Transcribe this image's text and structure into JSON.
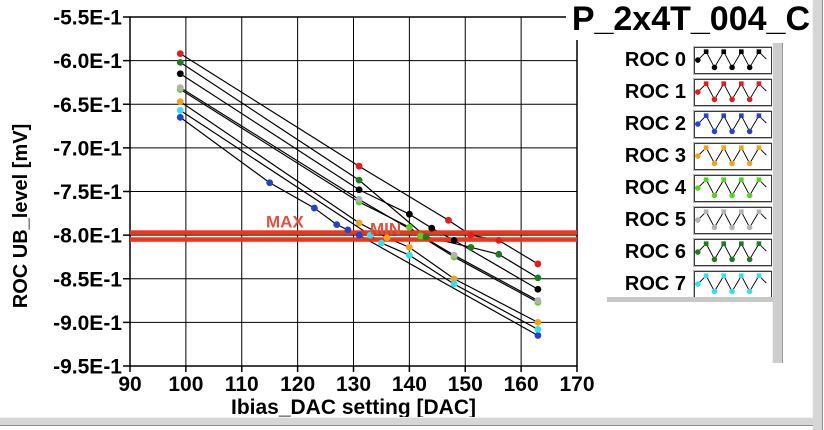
{
  "graph_title": "P_2x4T_004_C",
  "colors": {
    "plot_background": "#ffffff",
    "grid": "#000000",
    "data_line": "#000000",
    "reference_line": "#ee3519",
    "reference_label": "#e0523e",
    "window_chrome": "#d6d6d6"
  },
  "chart_data": {
    "type": "line",
    "title": "P_2x4T_004_C",
    "xlabel": "Ibias_DAC setting [DAC]",
    "ylabel": "ROC UB_level [mV]",
    "xlim": [
      90,
      170
    ],
    "ylim": [
      -0.95,
      -0.55
    ],
    "xticks": [
      90,
      100,
      110,
      120,
      130,
      140,
      150,
      160,
      170
    ],
    "yticks": [
      {
        "label": "-5.5E-1",
        "value": -0.55
      },
      {
        "label": "-6.0E-1",
        "value": -0.6
      },
      {
        "label": "-6.5E-1",
        "value": -0.65
      },
      {
        "label": "-7.0E-1",
        "value": -0.7
      },
      {
        "label": "-7.5E-1",
        "value": -0.75
      },
      {
        "label": "-8.0E-1",
        "value": -0.8
      },
      {
        "label": "-8.5E-1",
        "value": -0.85
      },
      {
        "label": "-9.0E-1",
        "value": -0.9
      },
      {
        "label": "-9.5E-1",
        "value": -0.95
      }
    ],
    "grid": true,
    "legend_position": "right",
    "line_color": "#000000",
    "marker_style": "filled-circle",
    "reference_lines": [
      {
        "label": "MAX",
        "value": -0.797
      },
      {
        "label": "MIN",
        "value": -0.805
      }
    ],
    "series": [
      {
        "name": "ROC 0",
        "color": "#000000",
        "points": [
          [
            99,
            -0.615
          ],
          [
            131,
            -0.748
          ],
          [
            140,
            -0.776
          ],
          [
            144,
            -0.792
          ],
          [
            148,
            -0.806
          ],
          [
            163,
            -0.862
          ]
        ]
      },
      {
        "name": "ROC 1",
        "color": "#e31c1c",
        "points": [
          [
            99,
            -0.592
          ],
          [
            131,
            -0.721
          ],
          [
            147,
            -0.783
          ],
          [
            151,
            -0.8
          ],
          [
            156,
            -0.806
          ],
          [
            163,
            -0.833
          ]
        ]
      },
      {
        "name": "ROC 2",
        "color": "#2443cb",
        "points": [
          [
            99,
            -0.665
          ],
          [
            115,
            -0.74
          ],
          [
            123,
            -0.769
          ],
          [
            127,
            -0.788
          ],
          [
            129,
            -0.794
          ],
          [
            131,
            -0.8
          ],
          [
            163,
            -0.915
          ]
        ]
      },
      {
        "name": "ROC 3",
        "color": "#f2a31c",
        "points": [
          [
            99,
            -0.647
          ],
          [
            131,
            -0.786
          ],
          [
            136,
            -0.803
          ],
          [
            140,
            -0.814
          ],
          [
            148,
            -0.85
          ],
          [
            163,
            -0.9
          ]
        ]
      },
      {
        "name": "ROC 4",
        "color": "#55d41f",
        "points": [
          [
            99,
            -0.633
          ],
          [
            131,
            -0.762
          ],
          [
            140,
            -0.791
          ],
          [
            142,
            -0.801
          ],
          [
            148,
            -0.825
          ],
          [
            163,
            -0.877
          ]
        ]
      },
      {
        "name": "ROC 5",
        "color": "#b2b2b2",
        "points": [
          [
            99,
            -0.631
          ],
          [
            131,
            -0.759
          ],
          [
            148,
            -0.823
          ],
          [
            163,
            -0.875
          ]
        ]
      },
      {
        "name": "ROC 6",
        "color": "#1b7d1b",
        "points": [
          [
            99,
            -0.602
          ],
          [
            131,
            -0.737
          ],
          [
            143,
            -0.802
          ],
          [
            151,
            -0.814
          ],
          [
            156,
            -0.822
          ],
          [
            163,
            -0.849
          ]
        ]
      },
      {
        "name": "ROC 7",
        "color": "#33dff0",
        "points": [
          [
            99,
            -0.657
          ],
          [
            133,
            -0.8
          ],
          [
            135,
            -0.809
          ],
          [
            140,
            -0.823
          ],
          [
            148,
            -0.856
          ],
          [
            163,
            -0.908
          ]
        ]
      }
    ]
  }
}
